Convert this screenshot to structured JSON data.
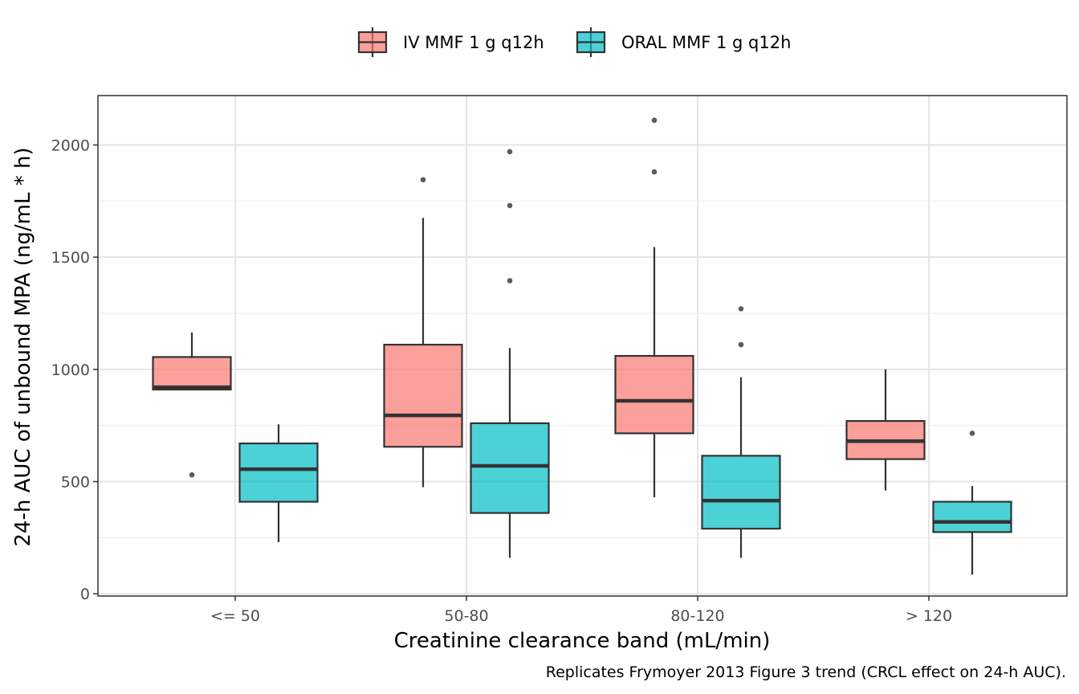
{
  "chart_data": {
    "type": "boxplot",
    "xlabel": "Creatinine clearance band (mL/min)",
    "ylabel": "24-h AUC of unbound MPA (ng/mL * h)",
    "caption": "Replicates Frymoyer 2013 Figure 3 trend (CRCL effect on 24-h AUC).",
    "categories": [
      "<= 50",
      "50-80",
      "80-120",
      "> 120"
    ],
    "ylim": [
      -10,
      2220
    ],
    "yticks": [
      0,
      500,
      1000,
      1500,
      2000
    ],
    "grid": true,
    "legend_position": "top",
    "series": [
      {
        "name": "IV MMF 1 g q12h",
        "color": "#F8766D",
        "boxes": [
          {
            "category": "<= 50",
            "whisker_low": 910,
            "q1": 910,
            "median": 920,
            "q3": 1055,
            "whisker_high": 1165,
            "outliers": [
              530
            ]
          },
          {
            "category": "50-80",
            "whisker_low": 475,
            "q1": 655,
            "median": 795,
            "q3": 1110,
            "whisker_high": 1675,
            "outliers": [
              1845
            ]
          },
          {
            "category": "80-120",
            "whisker_low": 430,
            "q1": 715,
            "median": 860,
            "q3": 1060,
            "whisker_high": 1545,
            "outliers": [
              1880,
              2110
            ]
          },
          {
            "category": "> 120",
            "whisker_low": 460,
            "q1": 600,
            "median": 680,
            "q3": 770,
            "whisker_high": 1000,
            "outliers": []
          }
        ]
      },
      {
        "name": "ORAL MMF 1 g q12h",
        "color": "#00BFC4",
        "boxes": [
          {
            "category": "<= 50",
            "whisker_low": 230,
            "q1": 410,
            "median": 555,
            "q3": 670,
            "whisker_high": 755,
            "outliers": []
          },
          {
            "category": "50-80",
            "whisker_low": 160,
            "q1": 360,
            "median": 570,
            "q3": 760,
            "whisker_high": 1095,
            "outliers": [
              1395,
              1730,
              1970
            ]
          },
          {
            "category": "80-120",
            "whisker_low": 160,
            "q1": 290,
            "median": 415,
            "q3": 615,
            "whisker_high": 965,
            "outliers": [
              1110,
              1270
            ]
          },
          {
            "category": "> 120",
            "whisker_low": 85,
            "q1": 275,
            "median": 320,
            "q3": 410,
            "whisker_high": 480,
            "outliers": [
              715
            ]
          }
        ]
      }
    ]
  }
}
